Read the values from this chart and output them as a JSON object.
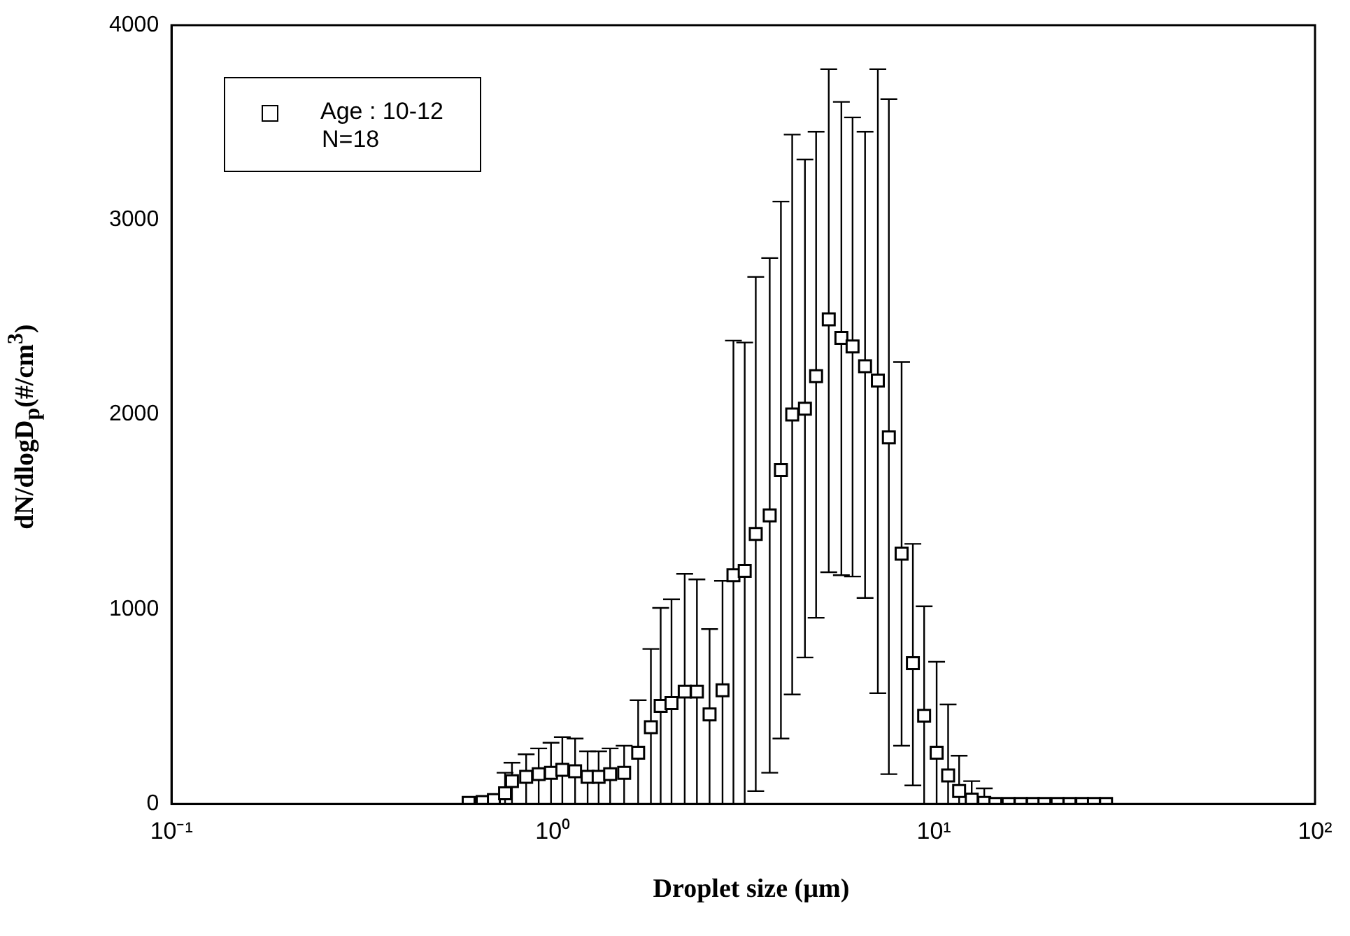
{
  "chart_data": {
    "type": "scatter",
    "xlabel": "Droplet size (µm)",
    "ylabel": "dN/dlogD$_{p}$(#/cm$^{3}$)",
    "log": "x",
    "xlim": [
      0.1,
      100
    ],
    "xticks": [
      {
        "value": 0.1,
        "label": "10⁻¹"
      },
      {
        "value": 1,
        "label": "10⁰"
      },
      {
        "value": 10,
        "label": "10¹"
      },
      {
        "value": 100,
        "label": "10²"
      }
    ],
    "ylim": [
      0,
      4000
    ],
    "yticks": [
      0,
      1000,
      2000,
      3000,
      4000
    ],
    "legend": "top left",
    "marker": "square",
    "annotations": [
      "N=18"
    ],
    "series": [
      {
        "name": "Age : 10-12",
        "color": "#000000",
        "x": [
          0.602,
          0.655,
          0.701,
          0.75,
          0.782,
          0.852,
          0.919,
          0.99,
          1.06,
          1.145,
          1.235,
          1.32,
          1.415,
          1.54,
          1.676,
          1.81,
          1.92,
          2.05,
          2.22,
          2.39,
          2.58,
          2.79,
          2.98,
          3.19,
          3.41,
          3.71,
          3.97,
          4.25,
          4.59,
          4.91,
          5.3,
          5.72,
          6.12,
          6.6,
          7.13,
          7.62,
          8.23,
          8.81,
          9.43,
          10.17,
          10.9,
          11.65,
          12.57,
          13.56,
          14.5,
          15.7,
          16.9,
          18.2,
          19.5,
          21.1,
          22.7,
          24.5,
          26.3,
          28.3
        ],
        "values": [
          5,
          10,
          20,
          55,
          117,
          139,
          153,
          160,
          175,
          168,
          139,
          139,
          153,
          160,
          263,
          394,
          504,
          518,
          577,
          577,
          460,
          584,
          1175,
          1197,
          1387,
          1482,
          1715,
          2000,
          2030,
          2197,
          2489,
          2394,
          2350,
          2248,
          2175,
          1883,
          1285,
          723,
          453,
          263,
          146,
          66,
          22,
          5,
          0,
          0,
          0,
          0,
          0,
          0,
          0,
          0,
          0,
          0
        ],
        "errors": [
          null,
          null,
          null,
          [
            0,
            160
          ],
          [
            0,
            212
          ],
          [
            0,
            255
          ],
          [
            0,
            285
          ],
          [
            0,
            314
          ],
          [
            0,
            343
          ],
          [
            0,
            336
          ],
          [
            0,
            270
          ],
          [
            0,
            270
          ],
          [
            0,
            285
          ],
          [
            0,
            299
          ],
          [
            0,
            533
          ],
          [
            0,
            796
          ],
          [
            0,
            1007
          ],
          [
            0,
            1051
          ],
          [
            0,
            1182
          ],
          [
            0,
            1153
          ],
          [
            0,
            898
          ],
          [
            0,
            1146
          ],
          [
            0,
            2380
          ],
          [
            0,
            2370
          ],
          [
            66,
            2707
          ],
          [
            160,
            2804
          ],
          [
            336,
            3094
          ],
          [
            562,
            3438
          ],
          [
            752,
            3310
          ],
          [
            956,
            3453
          ],
          [
            1190,
            3774
          ],
          [
            1175,
            3606
          ],
          [
            1168,
            3526
          ],
          [
            1058,
            3453
          ],
          [
            569,
            3774
          ],
          [
            153,
            3620
          ],
          [
            299,
            2270
          ],
          [
            95,
            1336
          ],
          [
            0,
            1015
          ],
          [
            0,
            730
          ],
          [
            0,
            511
          ],
          [
            0,
            248
          ],
          [
            0,
            117
          ],
          [
            0,
            80
          ],
          null,
          null,
          null,
          null,
          null,
          null,
          null,
          null,
          null,
          null
        ]
      }
    ]
  }
}
